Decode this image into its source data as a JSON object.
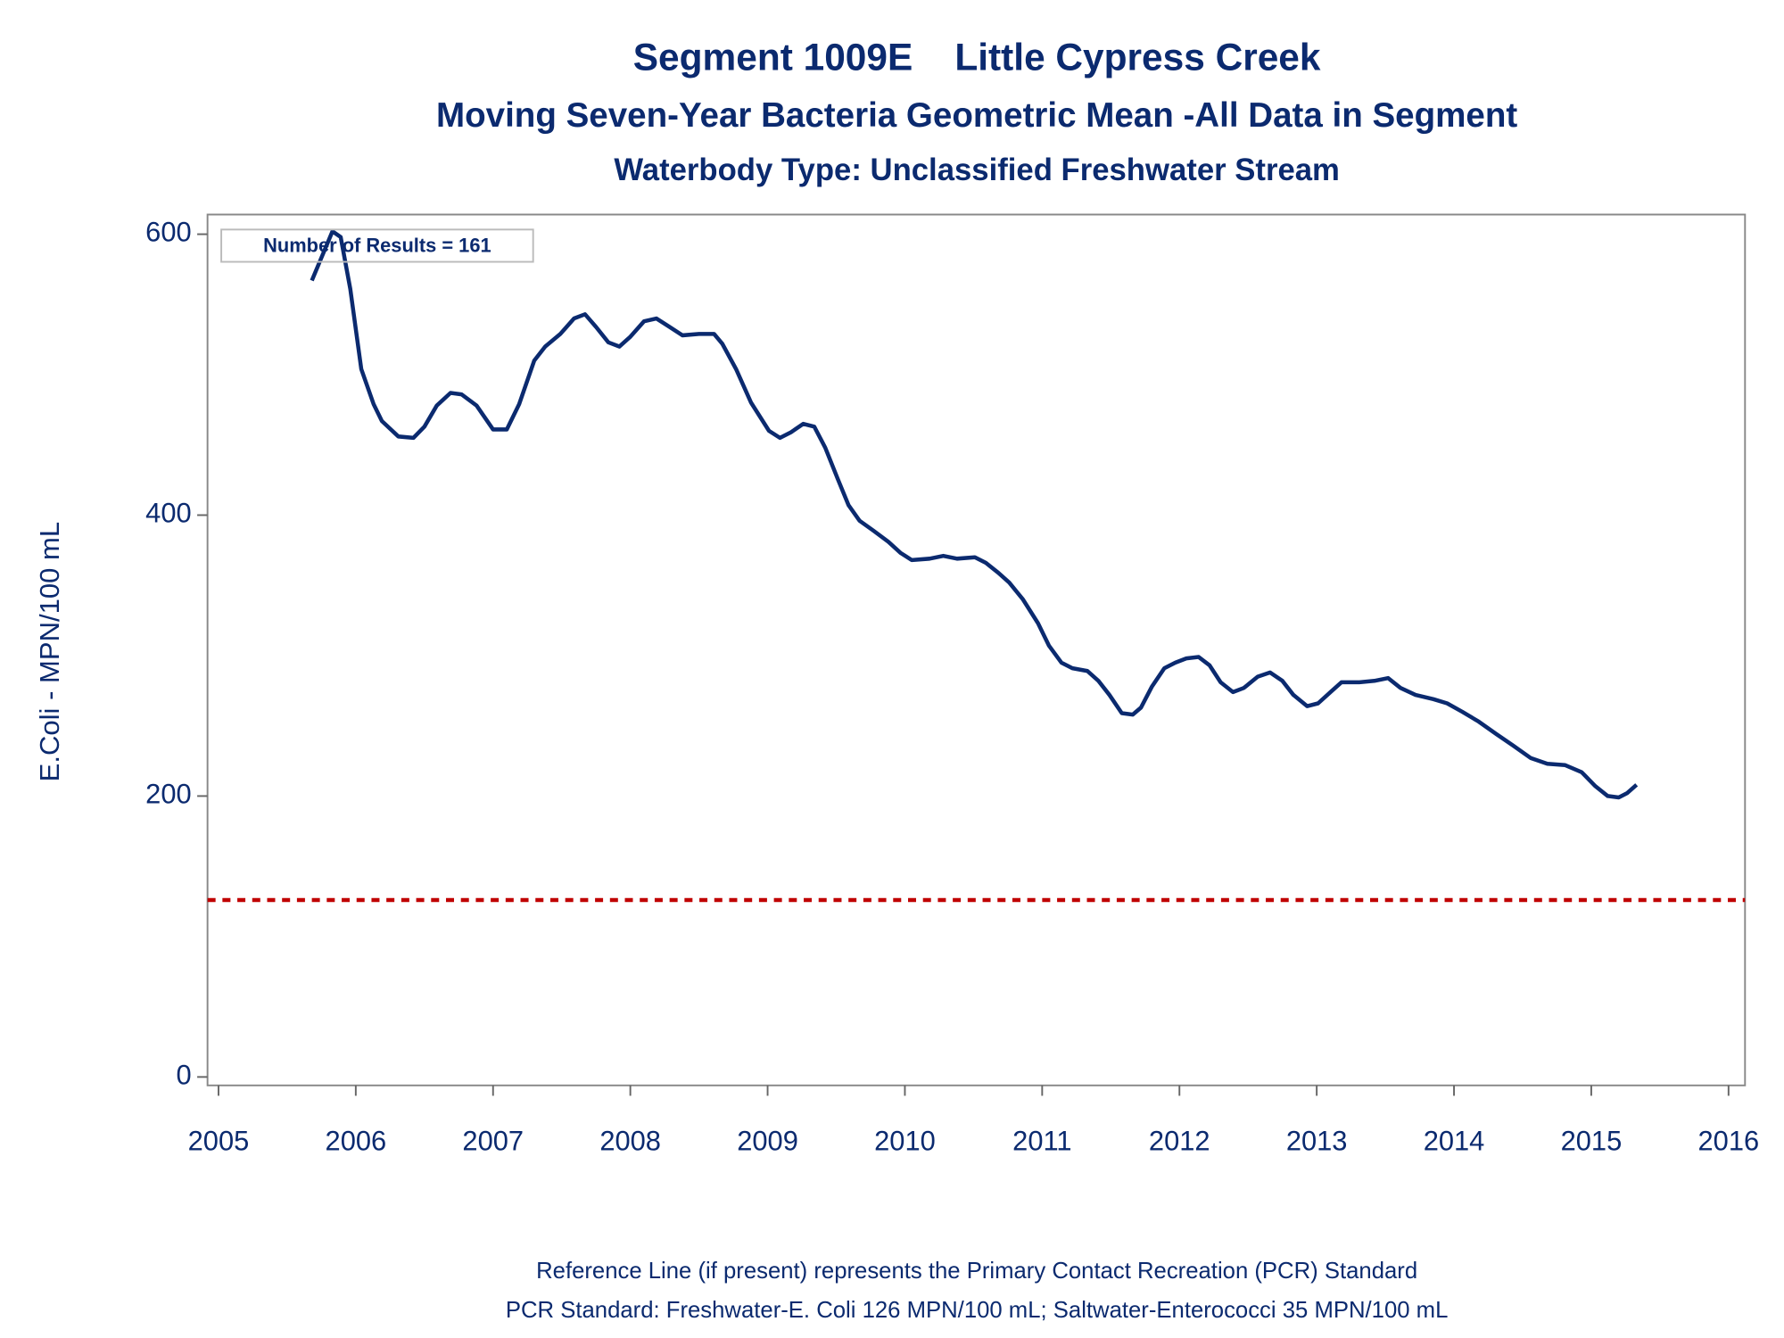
{
  "chart_data": {
    "type": "line",
    "title": "Segment 1009E    Little Cypress Creek",
    "subtitle": "Moving Seven-Year Bacteria Geometric Mean -All Data in Segment",
    "subtitle2": "Waterbody Type: Unclassified Freshwater Stream",
    "y_label": "E.Coli - MPN/100 mL",
    "annotation": "Number of Results = 161",
    "footnotes": [
      "Reference Line (if present) represents the Primary Contact Recreation (PCR) Standard",
      "PCR Standard: Freshwater-E. Coli 126 MPN/100 mL; Saltwater-Enterococci 35 MPN/100 mL"
    ],
    "color": "#0b2a6f",
    "reference_line": {
      "value": 126,
      "color": "#c00000"
    },
    "xlim": [
      2004.92,
      2016.12
    ],
    "xticks": [
      2005,
      2006,
      2007,
      2008,
      2009,
      2010,
      2011,
      2012,
      2013,
      2014,
      2015,
      2016
    ],
    "ylim": [
      -6,
      614
    ],
    "yticks": [
      0,
      200,
      400,
      600
    ],
    "x": [
      2005.68,
      2005.83,
      2005.89,
      2005.96,
      2006.04,
      2006.13,
      2006.19,
      2006.31,
      2006.42,
      2006.5,
      2006.59,
      2006.69,
      2006.77,
      2006.88,
      2007.0,
      2007.1,
      2007.19,
      2007.3,
      2007.38,
      2007.49,
      2007.59,
      2007.67,
      2007.75,
      2007.84,
      2007.92,
      2008.0,
      2008.1,
      2008.19,
      2008.27,
      2008.38,
      2008.5,
      2008.61,
      2008.67,
      2008.77,
      2008.88,
      2009.01,
      2009.09,
      2009.17,
      2009.26,
      2009.34,
      2009.42,
      2009.51,
      2009.59,
      2009.67,
      2009.77,
      2009.88,
      2009.97,
      2010.05,
      2010.18,
      2010.28,
      2010.38,
      2010.51,
      2010.59,
      2010.68,
      2010.76,
      2010.86,
      2010.97,
      2011.05,
      2011.14,
      2011.22,
      2011.33,
      2011.41,
      2011.49,
      2011.58,
      2011.66,
      2011.72,
      2011.8,
      2011.89,
      2011.97,
      2012.05,
      2012.14,
      2012.22,
      2012.3,
      2012.39,
      2012.47,
      2012.57,
      2012.66,
      2012.75,
      2012.83,
      2012.93,
      2013.01,
      2013.1,
      2013.18,
      2013.31,
      2013.42,
      2013.52,
      2013.61,
      2013.72,
      2013.85,
      2013.95,
      2014.06,
      2014.18,
      2014.31,
      2014.43,
      2014.56,
      2014.68,
      2014.81,
      2014.93,
      2015.03,
      2015.12,
      2015.2,
      2015.26,
      2015.33
    ],
    "values": [
      567,
      602,
      598,
      561,
      504,
      479,
      467,
      456,
      455,
      463,
      478,
      487,
      486,
      478,
      461,
      461,
      479,
      510,
      520,
      529,
      540,
      543,
      534,
      523,
      520,
      527,
      538,
      540,
      535,
      528,
      529,
      529,
      522,
      504,
      480,
      460,
      455,
      459,
      465,
      463,
      448,
      426,
      407,
      396,
      389,
      381,
      373,
      368,
      369,
      371,
      369,
      370,
      366,
      359,
      352,
      340,
      323,
      307,
      295,
      291,
      289,
      282,
      272,
      259,
      258,
      263,
      278,
      291,
      295,
      298,
      299,
      293,
      281,
      274,
      277,
      285,
      288,
      282,
      272,
      264,
      266,
      274,
      281,
      281,
      282,
      284,
      277,
      272,
      269,
      266,
      260,
      253,
      244,
      236,
      227,
      223,
      222,
      217,
      207,
      200,
      199,
      202,
      208
    ]
  }
}
